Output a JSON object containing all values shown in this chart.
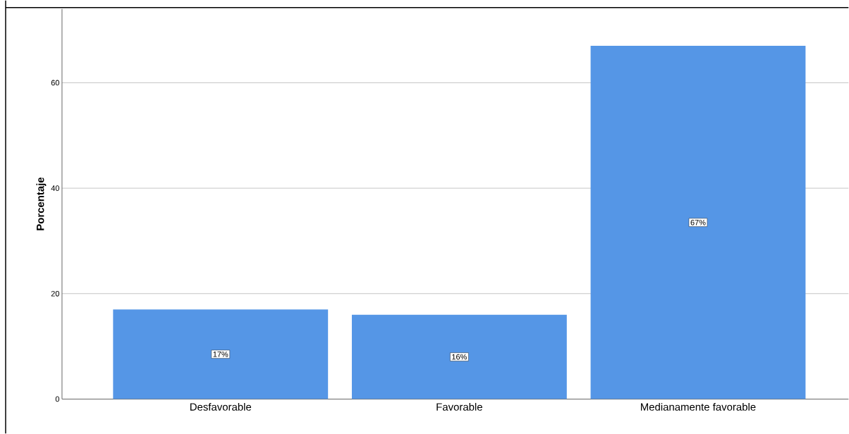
{
  "chart_data": {
    "type": "bar",
    "ylabel": "Porcentaje",
    "categories": [
      "Desfavorable",
      "Favorable",
      "Medianamente favorable"
    ],
    "values": [
      17,
      16,
      67
    ],
    "value_labels": [
      "17%",
      "16%",
      "67%"
    ],
    "color": "#5596e6",
    "ylim": [
      0,
      74
    ],
    "yticks": [
      0,
      20,
      40,
      60
    ],
    "grid": "y"
  }
}
